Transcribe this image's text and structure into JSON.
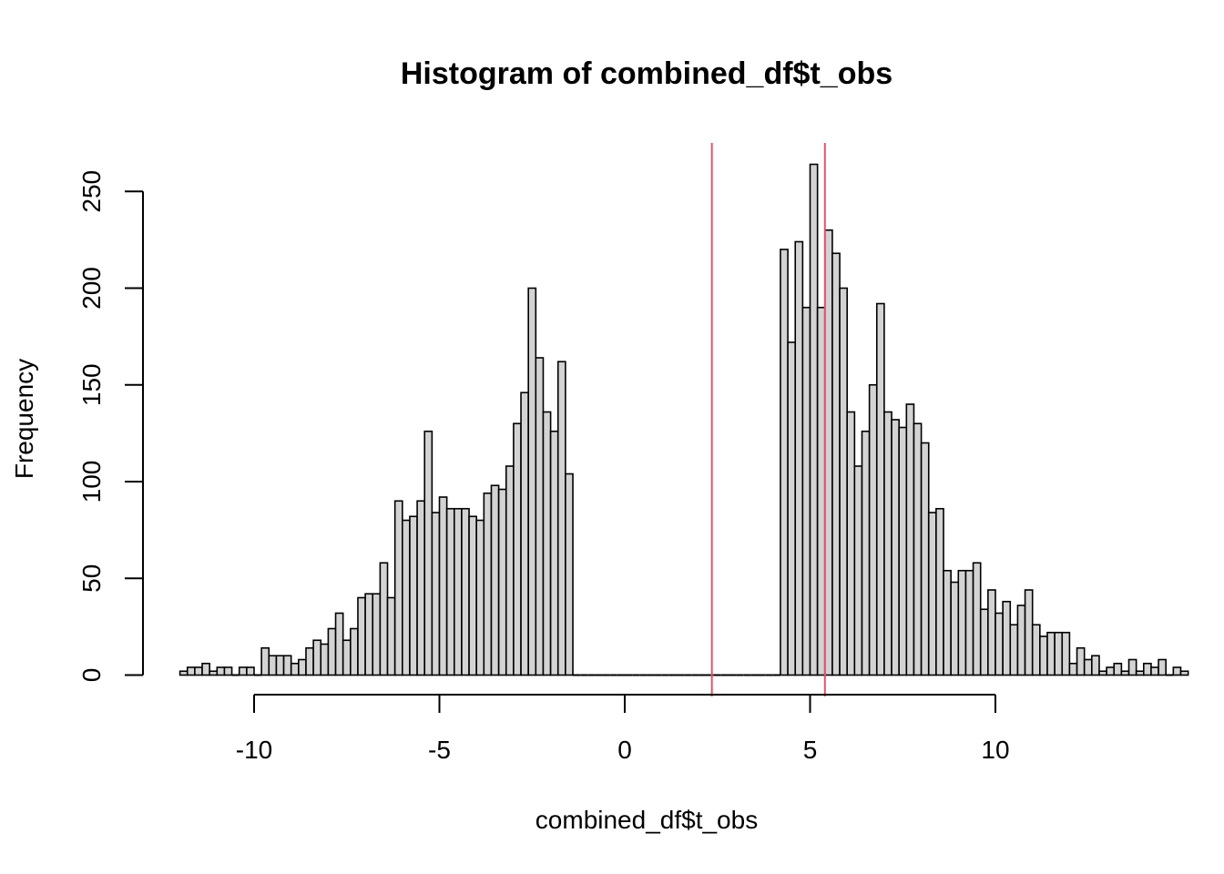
{
  "chart_data": {
    "type": "bar",
    "title": "Histogram of combined_df$t_obs",
    "xlabel": "combined_df$t_obs",
    "ylabel": "Frequency",
    "xlim": [
      -12.2,
      13.2
    ],
    "ylim": [
      0,
      265
    ],
    "x_ticks": [
      -10,
      -5,
      0,
      5,
      10
    ],
    "x_tick_labels": [
      "-10",
      "-5",
      "0",
      "5",
      "10"
    ],
    "y_ticks": [
      0,
      50,
      100,
      150,
      200,
      250
    ],
    "y_tick_labels": [
      "0",
      "50",
      "100",
      "150",
      "200",
      "250"
    ],
    "bin_width": 0.2,
    "bin_start": -12.0,
    "values": [
      2,
      4,
      4,
      6,
      2,
      4,
      4,
      0,
      4,
      4,
      0,
      14,
      10,
      10,
      10,
      6,
      8,
      14,
      18,
      16,
      24,
      32,
      18,
      24,
      40,
      42,
      42,
      58,
      40,
      90,
      80,
      82,
      90,
      126,
      84,
      92,
      86,
      86,
      86,
      82,
      80,
      94,
      98,
      96,
      108,
      130,
      146,
      200,
      164,
      136,
      126,
      162,
      104,
      0,
      0,
      0,
      0,
      0,
      0,
      0,
      0,
      0,
      0,
      0,
      0,
      0,
      0,
      0,
      0,
      0,
      0,
      0,
      0,
      0,
      0,
      0,
      0,
      0,
      0,
      0,
      0,
      220,
      172,
      224,
      190,
      264,
      190,
      230,
      218,
      200,
      136,
      108,
      126,
      150,
      192,
      136,
      132,
      128,
      140,
      130,
      120,
      84,
      86,
      54,
      48,
      54,
      54,
      58,
      34,
      44,
      32,
      38,
      26,
      36,
      44,
      26,
      20,
      22,
      22,
      22,
      6,
      14,
      8,
      10,
      2,
      4,
      6,
      2,
      8,
      2,
      6,
      4,
      8,
      0,
      4,
      2
    ],
    "vlines": [
      2.35,
      5.4
    ],
    "colors": {
      "bar_fill": "#d3d3d3",
      "bar_stroke": "#000000",
      "vline": "#df536b",
      "background": "#ffffff"
    }
  }
}
